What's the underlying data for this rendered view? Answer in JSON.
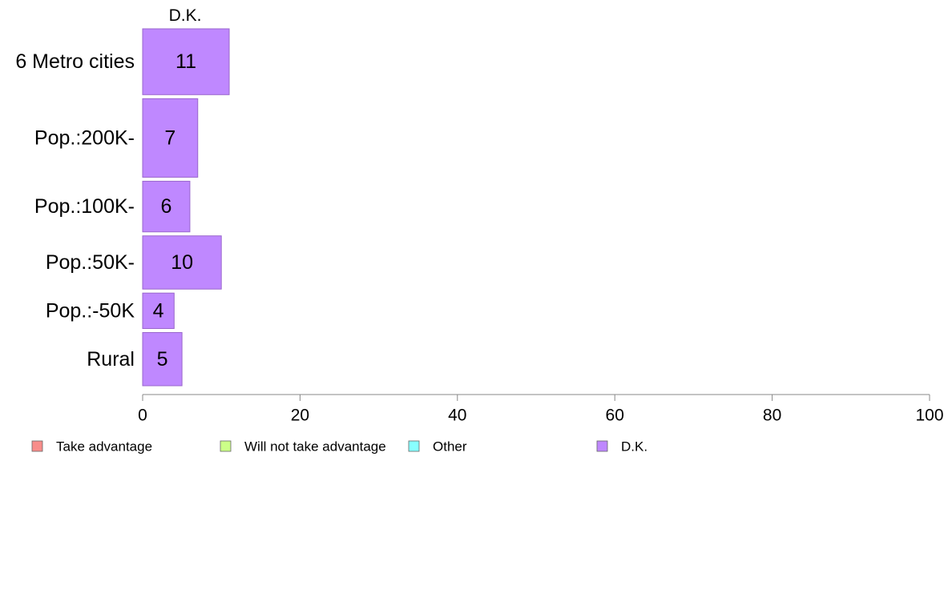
{
  "chart_data": {
    "type": "bar",
    "orientation": "horizontal",
    "panel_title": "D.K.",
    "categories": [
      "6 Metro cities",
      "Pop.:200K-",
      "Pop.:100K-",
      "Pop.:50K-",
      "Pop.:-50K",
      "Rural"
    ],
    "values": [
      11,
      7,
      6,
      10,
      4,
      5
    ],
    "relative_group_sizes": [
      1.3,
      1.55,
      1.0,
      1.05,
      0.7,
      1.05
    ],
    "xlim": [
      0,
      100
    ],
    "xticks": [
      0,
      20,
      40,
      60,
      80,
      100
    ],
    "grid": false,
    "legend_position": "bottom-left",
    "legend": [
      {
        "label": "Take advantage",
        "color": "#F88D8A"
      },
      {
        "label": "Will not take advantage",
        "color": "#CCFF88"
      },
      {
        "label": "Other",
        "color": "#88FFFF"
      },
      {
        "label": "D.K.",
        "color": "#BF88FF"
      }
    ],
    "bar_color": "#BF88FF",
    "bar_stroke": "#9966CC"
  }
}
